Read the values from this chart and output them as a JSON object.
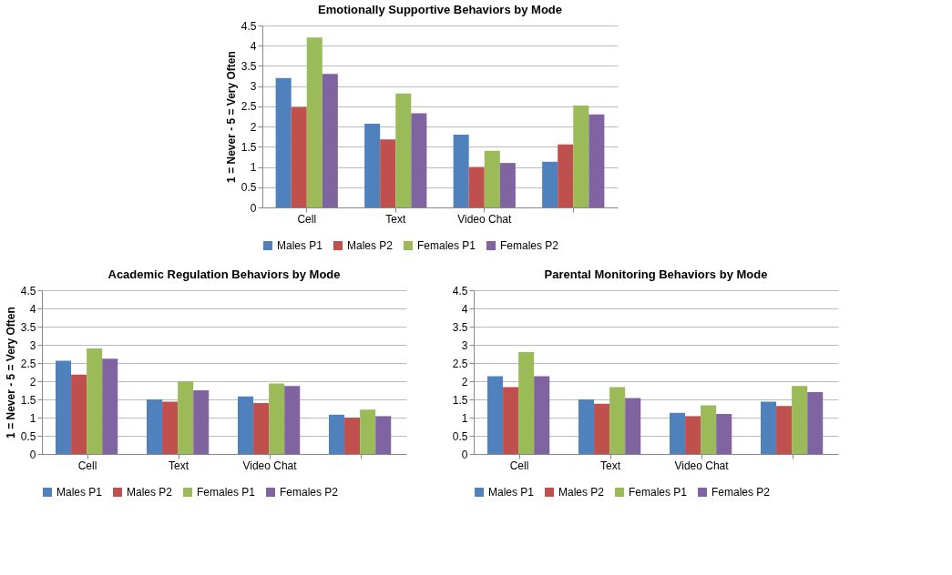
{
  "chart_data": [
    {
      "type": "bar",
      "title": "Emotionally Supportive Behaviors by Mode",
      "ylabel": "1 = Never - 5 = Very Often",
      "categories": [
        "Cell",
        "Text",
        "Video Chat",
        null
      ],
      "ylim": [
        0,
        4.5
      ],
      "yticks": [
        0,
        0.5,
        1,
        1.5,
        2,
        2.5,
        3,
        3.5,
        4,
        4.5
      ],
      "grid": "y",
      "legend": "bottom",
      "series": [
        {
          "name": "Males P1",
          "color": "#4f81bd",
          "values": [
            3.2,
            2.07,
            1.8,
            1.13
          ]
        },
        {
          "name": "Males P2",
          "color": "#c0504d",
          "values": [
            2.48,
            1.68,
            1.0,
            1.56
          ]
        },
        {
          "name": "Females P1",
          "color": "#9bbb59",
          "values": [
            4.2,
            2.82,
            1.4,
            2.52
          ]
        },
        {
          "name": "Females P2",
          "color": "#8064a2",
          "values": [
            3.3,
            2.33,
            1.1,
            2.3
          ]
        }
      ]
    },
    {
      "type": "bar",
      "title": "Academic Regulation Behaviors by Mode",
      "ylabel": "1 = Never - 5 = Very Often",
      "categories": [
        "Cell",
        "Text",
        "Video Chat",
        null
      ],
      "ylim": [
        0,
        4.5
      ],
      "yticks": [
        0,
        0.5,
        1,
        1.5,
        2,
        2.5,
        3,
        3.5,
        4,
        4.5
      ],
      "grid": "y",
      "legend": "bottom",
      "series": [
        {
          "name": "Males P1",
          "color": "#4f81bd",
          "values": [
            2.56,
            1.5,
            1.58,
            1.08
          ]
        },
        {
          "name": "Males P2",
          "color": "#c0504d",
          "values": [
            2.18,
            1.44,
            1.4,
            1.0
          ]
        },
        {
          "name": "Females P1",
          "color": "#9bbb59",
          "values": [
            2.9,
            2.0,
            1.94,
            1.22
          ]
        },
        {
          "name": "Females P2",
          "color": "#8064a2",
          "values": [
            2.62,
            1.75,
            1.87,
            1.04
          ]
        }
      ]
    },
    {
      "type": "bar",
      "title": "Parental Monitoring Behaviors by Mode",
      "categories": [
        "Cell",
        "Text",
        "Video Chat",
        null
      ],
      "ylim": [
        0,
        4.5
      ],
      "yticks": [
        0,
        0.5,
        1,
        1.5,
        2,
        2.5,
        3,
        3.5,
        4,
        4.5
      ],
      "grid": "y",
      "legend": "bottom",
      "series": [
        {
          "name": "Males P1",
          "color": "#4f81bd",
          "values": [
            2.14,
            1.5,
            1.13,
            1.44
          ]
        },
        {
          "name": "Males P2",
          "color": "#c0504d",
          "values": [
            1.84,
            1.38,
            1.04,
            1.32
          ]
        },
        {
          "name": "Females P1",
          "color": "#9bbb59",
          "values": [
            2.8,
            1.84,
            1.34,
            1.87
          ]
        },
        {
          "name": "Females P2",
          "color": "#8064a2",
          "values": [
            2.14,
            1.54,
            1.1,
            1.7
          ]
        }
      ]
    }
  ]
}
